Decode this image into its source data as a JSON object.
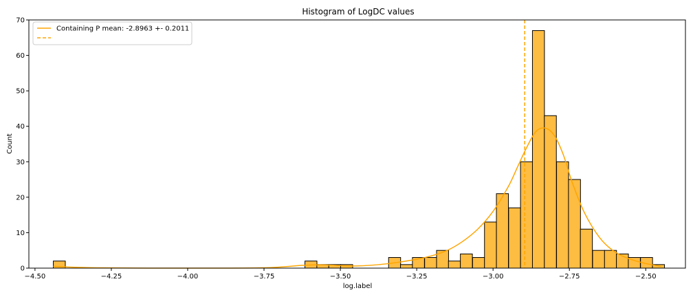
{
  "chart_data": {
    "type": "histogram",
    "title": "Histogram of LogDC values",
    "xlabel": "log.label",
    "ylabel": "Count",
    "xlim": [
      -4.52,
      -2.37
    ],
    "ylim": [
      0,
      70
    ],
    "xticks": [
      -4.5,
      -4.25,
      -4.0,
      -3.75,
      -3.5,
      -3.25,
      -3.0,
      -2.75,
      -2.5
    ],
    "xtick_labels": [
      "−4.50",
      "−4.25",
      "−4.00",
      "−3.75",
      "−3.50",
      "−3.25",
      "−3.00",
      "−2.75",
      "−2.50"
    ],
    "yticks": [
      0,
      10,
      20,
      30,
      40,
      50,
      60,
      70
    ],
    "ytick_labels": [
      "0",
      "10",
      "20",
      "30",
      "40",
      "50",
      "60",
      "70"
    ],
    "bin_width": 0.0393,
    "bins": [
      {
        "x0": -4.44,
        "count": 2
      },
      {
        "x0": -3.616,
        "count": 2
      },
      {
        "x0": -3.577,
        "count": 1
      },
      {
        "x0": -3.538,
        "count": 1
      },
      {
        "x0": -3.499,
        "count": 1
      },
      {
        "x0": -3.342,
        "count": 3
      },
      {
        "x0": -3.303,
        "count": 1
      },
      {
        "x0": -3.264,
        "count": 3
      },
      {
        "x0": -3.224,
        "count": 3
      },
      {
        "x0": -3.185,
        "count": 5
      },
      {
        "x0": -3.146,
        "count": 2
      },
      {
        "x0": -3.107,
        "count": 4
      },
      {
        "x0": -3.067,
        "count": 3
      },
      {
        "x0": -3.028,
        "count": 13
      },
      {
        "x0": -2.989,
        "count": 21
      },
      {
        "x0": -2.949,
        "count": 17
      },
      {
        "x0": -2.91,
        "count": 30
      },
      {
        "x0": -2.871,
        "count": 67
      },
      {
        "x0": -2.832,
        "count": 43
      },
      {
        "x0": -2.792,
        "count": 30
      },
      {
        "x0": -2.753,
        "count": 25
      },
      {
        "x0": -2.714,
        "count": 11
      },
      {
        "x0": -2.674,
        "count": 5
      },
      {
        "x0": -2.635,
        "count": 5
      },
      {
        "x0": -2.596,
        "count": 4
      },
      {
        "x0": -2.557,
        "count": 3
      },
      {
        "x0": -2.517,
        "count": 3
      },
      {
        "x0": -2.478,
        "count": 1
      }
    ],
    "kde": {
      "x": [
        -4.44,
        -4.3,
        -4.0,
        -3.75,
        -3.62,
        -3.55,
        -3.45,
        -3.35,
        -3.25,
        -3.2,
        -3.15,
        -3.1,
        -3.05,
        -3.0,
        -2.95,
        -2.92,
        -2.89,
        -2.86,
        -2.83,
        -2.8,
        -2.77,
        -2.74,
        -2.7,
        -2.65,
        -2.6,
        -2.55,
        -2.5,
        -2.45
      ],
      "y": [
        0.5,
        0.1,
        0.0,
        0.1,
        0.8,
        0.9,
        0.6,
        1.2,
        2.5,
        3.5,
        5.0,
        7.5,
        11.0,
        16.0,
        23.0,
        28.5,
        34.0,
        38.5,
        39.5,
        37.5,
        32.0,
        24.0,
        15.5,
        8.5,
        4.5,
        2.5,
        1.3,
        0.5
      ]
    },
    "mean_line_x": -2.8963,
    "colors": {
      "bar_fill": "#fdbc42",
      "bar_edge": "#000000",
      "kde": "#ffa500",
      "mean_line": "#ffa500"
    },
    "legend": {
      "placement": "top-left",
      "entries": [
        {
          "label": "Containing P mean: -2.8963 +- 0.2011",
          "style": "solid"
        },
        {
          "label": "",
          "style": "dashed"
        }
      ]
    }
  }
}
